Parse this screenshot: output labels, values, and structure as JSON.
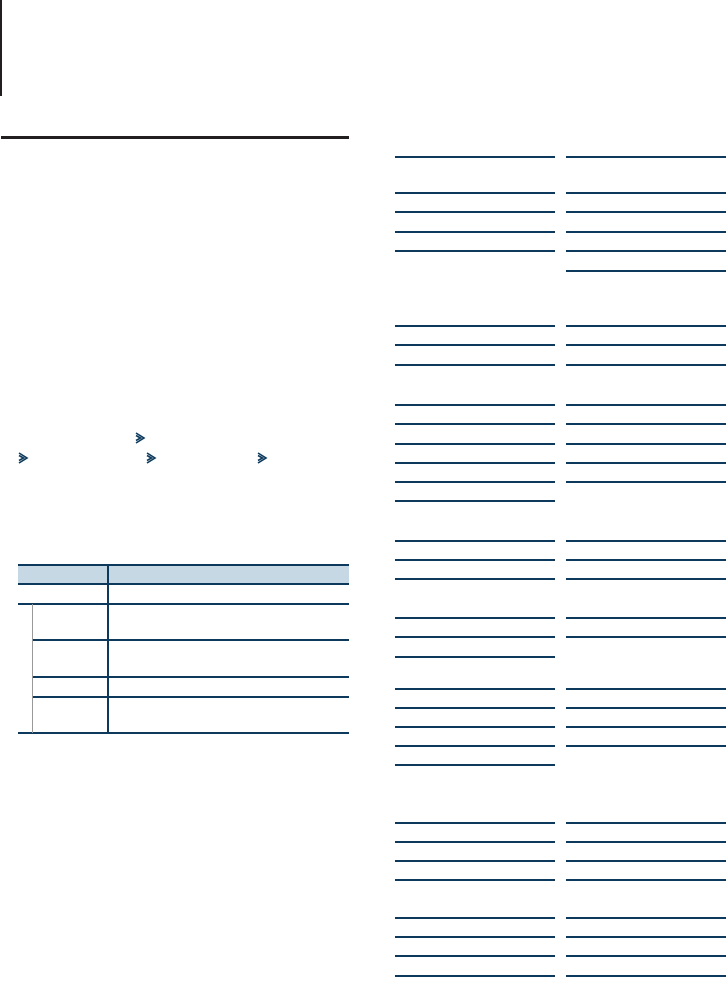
{
  "colors": {
    "rule_dark": "#231f20",
    "accent_navy": "#0d3a5c",
    "table_header_bg": "#c6d8e4",
    "indent_guide": "#999999"
  },
  "icons": {
    "chevron": "double-chevron-right-icon"
  },
  "table": {
    "columns": 2,
    "rows": 6
  },
  "spec_columns": 2
}
